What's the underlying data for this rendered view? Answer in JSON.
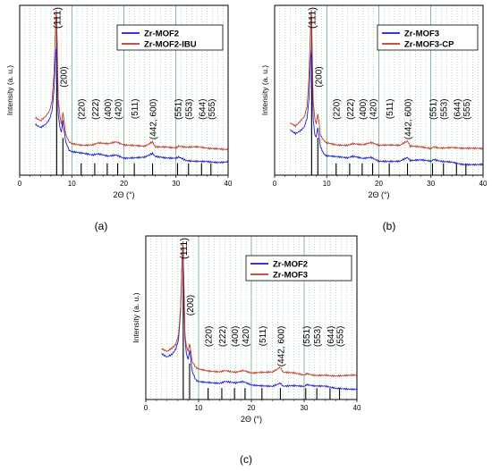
{
  "chart_data": [
    {
      "type": "line",
      "panel_label": "(a)",
      "xlabel": "2Θ (°)",
      "ylabel": "Intensity (a. u.)",
      "xlim": [
        0,
        40
      ],
      "xticks": [
        0,
        10,
        20,
        30,
        40
      ],
      "legend": {
        "position": "top-right",
        "entries": [
          "Zr-MOF2",
          "Zr-MOF2-IBU"
        ]
      },
      "series": [
        {
          "name": "Zr-MOF2",
          "color": "#1c1ccc",
          "x": [
            3,
            4,
            5,
            5.7,
            6.2,
            6.6,
            6.9,
            7.05,
            7.2,
            7.4,
            7.7,
            8.0,
            8.3,
            8.5,
            8.8,
            9.5,
            10,
            12,
            14,
            15,
            17,
            18.5,
            20,
            22,
            24,
            25.5,
            26,
            28,
            30,
            30.5,
            32,
            34,
            36,
            38,
            40
          ],
          "y": [
            0.3,
            0.28,
            0.3,
            0.33,
            0.38,
            0.5,
            0.73,
            0.78,
            0.62,
            0.36,
            0.28,
            0.25,
            0.31,
            0.26,
            0.18,
            0.13,
            0.12,
            0.11,
            0.1,
            0.11,
            0.1,
            0.11,
            0.09,
            0.09,
            0.09,
            0.11,
            0.09,
            0.08,
            0.08,
            0.09,
            0.07,
            0.07,
            0.07,
            0.06,
            0.06
          ]
        },
        {
          "name": "Zr-MOF2-IBU",
          "color": "#c0392b",
          "x": [
            3,
            4,
            5,
            5.7,
            6.2,
            6.6,
            6.9,
            7.05,
            7.2,
            7.4,
            7.7,
            8.0,
            8.3,
            8.5,
            8.8,
            9.5,
            10,
            12,
            14,
            15,
            17,
            18.5,
            20,
            22,
            24,
            25.5,
            26,
            28,
            30,
            30.5,
            32,
            34,
            36,
            38,
            40
          ],
          "y": [
            0.33,
            0.31,
            0.34,
            0.37,
            0.43,
            0.62,
            0.93,
            1.0,
            0.8,
            0.45,
            0.34,
            0.3,
            0.37,
            0.32,
            0.24,
            0.19,
            0.18,
            0.17,
            0.17,
            0.18,
            0.17,
            0.18,
            0.16,
            0.16,
            0.16,
            0.19,
            0.16,
            0.16,
            0.15,
            0.16,
            0.15,
            0.15,
            0.14,
            0.14,
            0.14
          ]
        }
      ],
      "reflections": [
        {
          "label": "(111)",
          "x": 7.1
        },
        {
          "label": "(200)",
          "x": 8.3
        },
        {
          "label": "(220)",
          "x": 11.8
        },
        {
          "label": "(222)",
          "x": 14.4
        },
        {
          "label": "(400)",
          "x": 16.8
        },
        {
          "label": "(420)",
          "x": 18.8
        },
        {
          "label": "(511)",
          "x": 22.0
        },
        {
          "label": "(442, 600)",
          "x": 25.5
        },
        {
          "label": "(551)",
          "x": 30.3
        },
        {
          "label": "(553)",
          "x": 32.4
        },
        {
          "label": "(644)",
          "x": 34.9
        },
        {
          "label": "(555)",
          "x": 36.7
        }
      ]
    },
    {
      "type": "line",
      "panel_label": "(b)",
      "xlabel": "2Θ (°)",
      "ylabel": "Intensity (a. u.)",
      "xlim": [
        0,
        40
      ],
      "xticks": [
        0,
        10,
        20,
        30,
        40
      ],
      "legend": {
        "position": "top-right",
        "entries": [
          "Zr-MOF3",
          "Zr-MOF3-CP"
        ]
      },
      "series": [
        {
          "name": "Zr-MOF3",
          "color": "#1c1ccc",
          "x": [
            3,
            4,
            5,
            5.7,
            6.2,
            6.6,
            6.9,
            7.05,
            7.2,
            7.4,
            7.7,
            8.0,
            8.3,
            8.5,
            8.8,
            9.5,
            10,
            12,
            14,
            15,
            17,
            18.5,
            20,
            22,
            24,
            25.5,
            26,
            28,
            30,
            30.5,
            32,
            34,
            36,
            38,
            40
          ],
          "y": [
            0.26,
            0.24,
            0.26,
            0.28,
            0.33,
            0.45,
            0.7,
            0.76,
            0.58,
            0.32,
            0.24,
            0.22,
            0.27,
            0.23,
            0.15,
            0.11,
            0.1,
            0.09,
            0.08,
            0.09,
            0.08,
            0.09,
            0.07,
            0.07,
            0.07,
            0.09,
            0.07,
            0.07,
            0.06,
            0.07,
            0.06,
            0.06,
            0.05,
            0.05,
            0.05
          ]
        },
        {
          "name": "Zr-MOF3-CP",
          "color": "#c0392b",
          "x": [
            3,
            4,
            5,
            5.7,
            6.2,
            6.6,
            6.9,
            7.05,
            7.2,
            7.4,
            7.7,
            8.0,
            8.3,
            8.5,
            8.8,
            9.5,
            10,
            12,
            14,
            15,
            17,
            18.5,
            20,
            22,
            24,
            25.5,
            26,
            28,
            30,
            30.5,
            32,
            34,
            36,
            38,
            40
          ],
          "y": [
            0.3,
            0.28,
            0.31,
            0.34,
            0.4,
            0.6,
            0.92,
            1.0,
            0.78,
            0.44,
            0.33,
            0.29,
            0.36,
            0.31,
            0.23,
            0.19,
            0.18,
            0.17,
            0.17,
            0.18,
            0.17,
            0.18,
            0.16,
            0.16,
            0.16,
            0.19,
            0.16,
            0.16,
            0.15,
            0.16,
            0.15,
            0.15,
            0.14,
            0.14,
            0.14
          ]
        }
      ],
      "reflections": [
        {
          "label": "(111)",
          "x": 7.1
        },
        {
          "label": "(200)",
          "x": 8.3
        },
        {
          "label": "(220)",
          "x": 11.8
        },
        {
          "label": "(222)",
          "x": 14.4
        },
        {
          "label": "(400)",
          "x": 16.8
        },
        {
          "label": "(420)",
          "x": 18.8
        },
        {
          "label": "(511)",
          "x": 22.0
        },
        {
          "label": "(442, 600)",
          "x": 25.5
        },
        {
          "label": "(551)",
          "x": 30.3
        },
        {
          "label": "(553)",
          "x": 32.4
        },
        {
          "label": "(644)",
          "x": 34.9
        },
        {
          "label": "(555)",
          "x": 36.7
        }
      ]
    },
    {
      "type": "line",
      "panel_label": "(c)",
      "xlabel": "2Θ (°)",
      "ylabel": "Intensity (a. u.)",
      "xlim": [
        0,
        40
      ],
      "xticks": [
        0,
        10,
        20,
        30,
        40
      ],
      "legend": {
        "position": "top-right",
        "entries": [
          "Zr-MOF2",
          "Zr-MOF3"
        ]
      },
      "series": [
        {
          "name": "Zr-MOF2",
          "color": "#1c1ccc",
          "x": [
            3,
            4,
            5,
            5.7,
            6.2,
            6.6,
            6.9,
            7.05,
            7.2,
            7.4,
            7.7,
            8.0,
            8.3,
            8.5,
            8.8,
            9.5,
            10,
            12,
            14,
            15,
            17,
            18.5,
            20,
            22,
            24,
            25.5,
            26,
            28,
            30,
            30.5,
            32,
            34,
            36,
            38,
            40
          ],
          "y": [
            0.27,
            0.25,
            0.27,
            0.3,
            0.36,
            0.55,
            0.88,
            0.95,
            0.72,
            0.38,
            0.27,
            0.24,
            0.3,
            0.25,
            0.16,
            0.11,
            0.1,
            0.09,
            0.08,
            0.09,
            0.08,
            0.09,
            0.07,
            0.07,
            0.07,
            0.09,
            0.07,
            0.07,
            0.06,
            0.07,
            0.06,
            0.06,
            0.05,
            0.05,
            0.05
          ]
        },
        {
          "name": "Zr-MOF3",
          "color": "#c0392b",
          "x": [
            3,
            4,
            5,
            5.7,
            6.2,
            6.6,
            6.9,
            7.05,
            7.2,
            7.4,
            7.7,
            8.0,
            8.3,
            8.5,
            8.8,
            9.5,
            10,
            12,
            14,
            15,
            17,
            18.5,
            20,
            22,
            24,
            25.5,
            26,
            28,
            30,
            30.5,
            32,
            34,
            36,
            38,
            40
          ],
          "y": [
            0.31,
            0.29,
            0.31,
            0.34,
            0.4,
            0.58,
            0.9,
            1.0,
            0.76,
            0.42,
            0.32,
            0.28,
            0.34,
            0.29,
            0.22,
            0.18,
            0.17,
            0.16,
            0.16,
            0.17,
            0.16,
            0.17,
            0.15,
            0.15,
            0.15,
            0.18,
            0.15,
            0.15,
            0.14,
            0.15,
            0.14,
            0.14,
            0.13,
            0.13,
            0.13
          ]
        }
      ],
      "reflections": [
        {
          "label": "(111)",
          "x": 7.1
        },
        {
          "label": "(200)",
          "x": 8.3
        },
        {
          "label": "(220)",
          "x": 11.8
        },
        {
          "label": "(222)",
          "x": 14.4
        },
        {
          "label": "(400)",
          "x": 16.8
        },
        {
          "label": "(420)",
          "x": 18.8
        },
        {
          "label": "(511)",
          "x": 22.0
        },
        {
          "label": "(442, 600)",
          "x": 25.5
        },
        {
          "label": "(551)",
          "x": 30.3
        },
        {
          "label": "(553)",
          "x": 32.4
        },
        {
          "label": "(644)",
          "x": 34.9
        },
        {
          "label": "(555)",
          "x": 36.7
        }
      ]
    }
  ]
}
